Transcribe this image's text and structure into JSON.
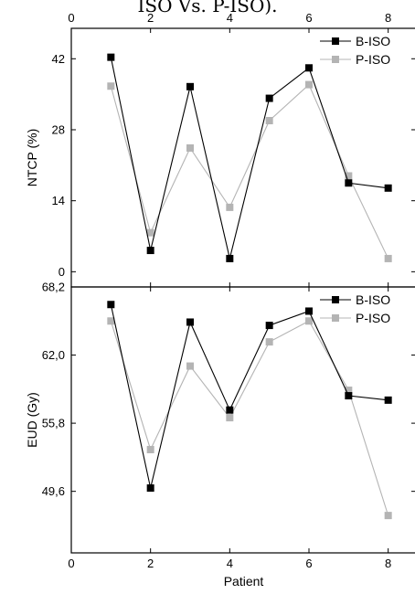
{
  "caption_fragment": "ISO Vs. P-ISO).",
  "colors": {
    "b_iso": "#000000",
    "p_iso": "#b4b4b4",
    "frame": "#000000",
    "background": "#ffffff"
  },
  "chart_data": [
    {
      "type": "line",
      "title": "",
      "xlabel": "",
      "ylabel": "NTCP (%)",
      "xlim": [
        0,
        8.7
      ],
      "ylim": [
        -3,
        48
      ],
      "x_ticks": [
        "0",
        "2",
        "4",
        "6",
        "8"
      ],
      "y_ticks": [
        "0",
        "14",
        "28",
        "42"
      ],
      "x_tick_position": "top",
      "legend_position": "top-right",
      "x": [
        1,
        2,
        3,
        4,
        5,
        6,
        7,
        8
      ],
      "series": [
        {
          "name": "B-ISO",
          "values": [
            42.3,
            4.2,
            36.5,
            2.6,
            34.2,
            40.2,
            17.5,
            16.5
          ]
        },
        {
          "name": "P-ISO",
          "values": [
            36.6,
            7.7,
            24.4,
            12.7,
            29.8,
            36.9,
            18.9,
            2.6
          ]
        }
      ]
    },
    {
      "type": "line",
      "title": "",
      "xlabel": "Patient",
      "ylabel": "EUD (Gy)",
      "xlim": [
        0,
        8.7
      ],
      "ylim": [
        44,
        68.2
      ],
      "x_ticks": [
        "0",
        "2",
        "4",
        "6",
        "8"
      ],
      "y_ticks": [
        "49,6",
        "55,8",
        "62,0",
        "68,2"
      ],
      "x_tick_position": "bottom",
      "legend_position": "top-right",
      "x": [
        1,
        2,
        3,
        4,
        5,
        6,
        7,
        8
      ],
      "series": [
        {
          "name": "B-ISO",
          "values": [
            66.6,
            49.9,
            65.0,
            57.0,
            64.7,
            66.0,
            58.3,
            57.9
          ]
        },
        {
          "name": "P-ISO",
          "values": [
            65.1,
            53.4,
            61.0,
            56.3,
            63.2,
            65.1,
            58.8,
            47.4
          ]
        }
      ]
    }
  ]
}
